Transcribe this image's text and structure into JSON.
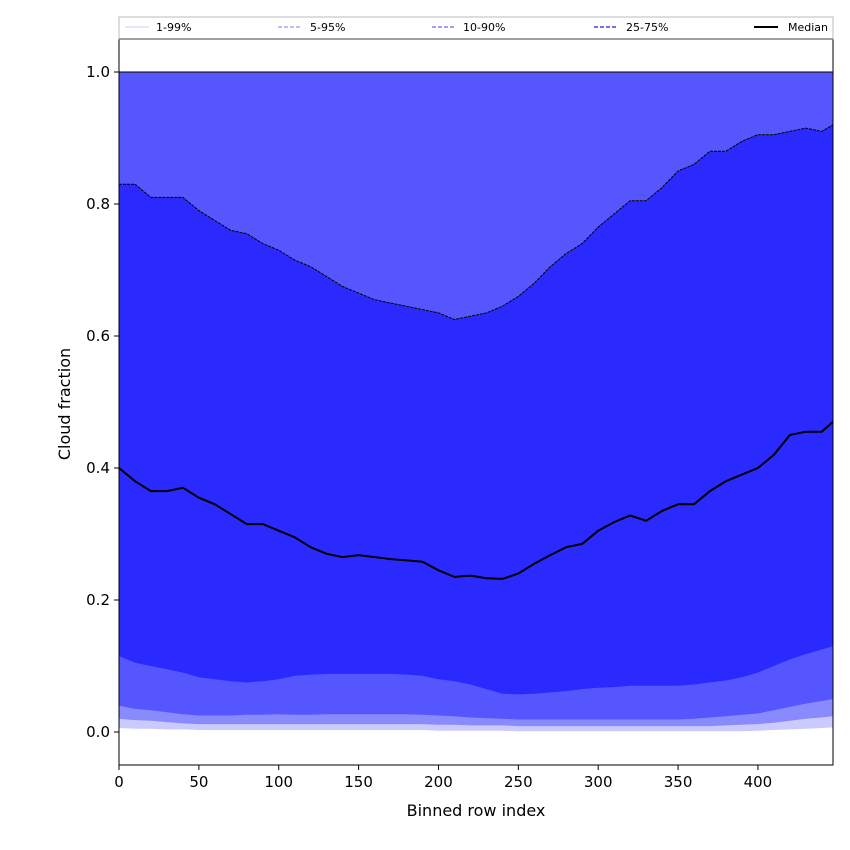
{
  "chart_data": {
    "type": "area",
    "title": "",
    "xlabel": "Binned row index",
    "ylabel": "Cloud fraction",
    "xlim": [
      0,
      447
    ],
    "ylim": [
      -0.05,
      1.05
    ],
    "xticks": [
      0,
      50,
      100,
      150,
      200,
      250,
      300,
      350,
      400
    ],
    "yticks": [
      0.0,
      0.2,
      0.4,
      0.6,
      0.8,
      1.0
    ],
    "xtick_labels": [
      "0",
      "50",
      "100",
      "150",
      "200",
      "250",
      "300",
      "350",
      "400"
    ],
    "ytick_labels": [
      "0.0",
      "0.2",
      "0.4",
      "0.6",
      "0.8",
      "1.0"
    ],
    "legend_position": "top, above plot area",
    "legend": [
      {
        "label": "1-99%",
        "color": "#d0d0f0",
        "style": "solid"
      },
      {
        "label": "5-95%",
        "color": "#a8a8f0",
        "style": "dashed"
      },
      {
        "label": "10-90%",
        "color": "#8080f0",
        "style": "dashed"
      },
      {
        "label": "25-75%",
        "color": "#4040e0",
        "style": "dashed"
      },
      {
        "label": "Median",
        "color": "#000000",
        "style": "solid"
      }
    ],
    "band_colors": {
      "1-99%": "#cacaff",
      "5-95%": "#8a8aff",
      "10-90%": "#5656ff",
      "25-75%": "#2a2aff"
    },
    "x": [
      0,
      10,
      20,
      30,
      40,
      50,
      60,
      70,
      80,
      90,
      100,
      110,
      120,
      130,
      140,
      150,
      160,
      170,
      180,
      190,
      200,
      210,
      220,
      230,
      240,
      250,
      260,
      270,
      280,
      290,
      300,
      310,
      320,
      330,
      340,
      350,
      360,
      370,
      380,
      390,
      400,
      410,
      420,
      430,
      440,
      447
    ],
    "series": [
      {
        "name": "Median",
        "values": [
          0.4,
          0.38,
          0.365,
          0.365,
          0.37,
          0.355,
          0.345,
          0.33,
          0.315,
          0.315,
          0.305,
          0.295,
          0.28,
          0.27,
          0.265,
          0.268,
          0.265,
          0.262,
          0.26,
          0.258,
          0.245,
          0.235,
          0.237,
          0.233,
          0.232,
          0.24,
          0.255,
          0.268,
          0.28,
          0.285,
          0.305,
          0.318,
          0.328,
          0.32,
          0.335,
          0.345,
          0.345,
          0.365,
          0.38,
          0.39,
          0.4,
          0.42,
          0.45,
          0.455,
          0.455,
          0.47
        ]
      },
      {
        "name": "25-75% upper",
        "values": [
          0.83,
          0.83,
          0.81,
          0.81,
          0.81,
          0.79,
          0.775,
          0.76,
          0.755,
          0.74,
          0.73,
          0.715,
          0.705,
          0.69,
          0.675,
          0.665,
          0.655,
          0.65,
          0.645,
          0.64,
          0.635,
          0.625,
          0.63,
          0.635,
          0.645,
          0.66,
          0.68,
          0.705,
          0.725,
          0.74,
          0.765,
          0.785,
          0.805,
          0.805,
          0.825,
          0.85,
          0.86,
          0.88,
          0.88,
          0.895,
          0.905,
          0.905,
          0.91,
          0.915,
          0.91,
          0.92
        ]
      },
      {
        "name": "25-75% lower",
        "values": [
          0.115,
          0.105,
          0.1,
          0.095,
          0.09,
          0.083,
          0.08,
          0.077,
          0.075,
          0.077,
          0.08,
          0.085,
          0.087,
          0.088,
          0.088,
          0.088,
          0.088,
          0.088,
          0.087,
          0.085,
          0.08,
          0.077,
          0.072,
          0.065,
          0.058,
          0.057,
          0.058,
          0.06,
          0.062,
          0.065,
          0.067,
          0.068,
          0.07,
          0.07,
          0.07,
          0.07,
          0.072,
          0.075,
          0.078,
          0.083,
          0.09,
          0.1,
          0.11,
          0.118,
          0.125,
          0.13
        ]
      },
      {
        "name": "10-90% upper",
        "values": [
          1.0,
          1.0,
          1.0,
          1.0,
          1.0,
          1.0,
          1.0,
          1.0,
          1.0,
          1.0,
          1.0,
          1.0,
          1.0,
          1.0,
          1.0,
          1.0,
          1.0,
          1.0,
          1.0,
          1.0,
          1.0,
          1.0,
          1.0,
          1.0,
          1.0,
          1.0,
          1.0,
          1.0,
          1.0,
          1.0,
          1.0,
          1.0,
          1.0,
          1.0,
          1.0,
          1.0,
          1.0,
          1.0,
          1.0,
          1.0,
          1.0,
          1.0,
          1.0,
          1.0,
          1.0,
          1.0
        ]
      },
      {
        "name": "10-90% lower",
        "values": [
          0.04,
          0.035,
          0.033,
          0.03,
          0.027,
          0.025,
          0.025,
          0.025,
          0.026,
          0.026,
          0.027,
          0.026,
          0.026,
          0.027,
          0.027,
          0.027,
          0.027,
          0.027,
          0.027,
          0.026,
          0.025,
          0.024,
          0.022,
          0.021,
          0.02,
          0.019,
          0.019,
          0.019,
          0.019,
          0.019,
          0.019,
          0.019,
          0.019,
          0.019,
          0.019,
          0.019,
          0.02,
          0.022,
          0.024,
          0.026,
          0.028,
          0.033,
          0.038,
          0.043,
          0.047,
          0.05
        ]
      },
      {
        "name": "5-95% lower",
        "values": [
          0.02,
          0.018,
          0.017,
          0.015,
          0.013,
          0.012,
          0.012,
          0.012,
          0.012,
          0.012,
          0.012,
          0.012,
          0.012,
          0.012,
          0.012,
          0.012,
          0.012,
          0.012,
          0.012,
          0.012,
          0.011,
          0.011,
          0.01,
          0.01,
          0.01,
          0.009,
          0.009,
          0.009,
          0.009,
          0.009,
          0.009,
          0.009,
          0.009,
          0.009,
          0.009,
          0.009,
          0.009,
          0.009,
          0.01,
          0.011,
          0.012,
          0.014,
          0.017,
          0.02,
          0.022,
          0.024
        ]
      },
      {
        "name": "1-99% lower",
        "values": [
          0.006,
          0.005,
          0.005,
          0.004,
          0.004,
          0.003,
          0.003,
          0.003,
          0.003,
          0.003,
          0.003,
          0.003,
          0.003,
          0.003,
          0.003,
          0.003,
          0.003,
          0.003,
          0.003,
          0.003,
          0.002,
          0.002,
          0.002,
          0.002,
          0.002,
          0.001,
          0.001,
          0.001,
          0.001,
          0.001,
          0.001,
          0.001,
          0.001,
          0.001,
          0.001,
          0.001,
          0.001,
          0.001,
          0.001,
          0.001,
          0.002,
          0.003,
          0.004,
          0.005,
          0.006,
          0.007
        ]
      }
    ]
  }
}
